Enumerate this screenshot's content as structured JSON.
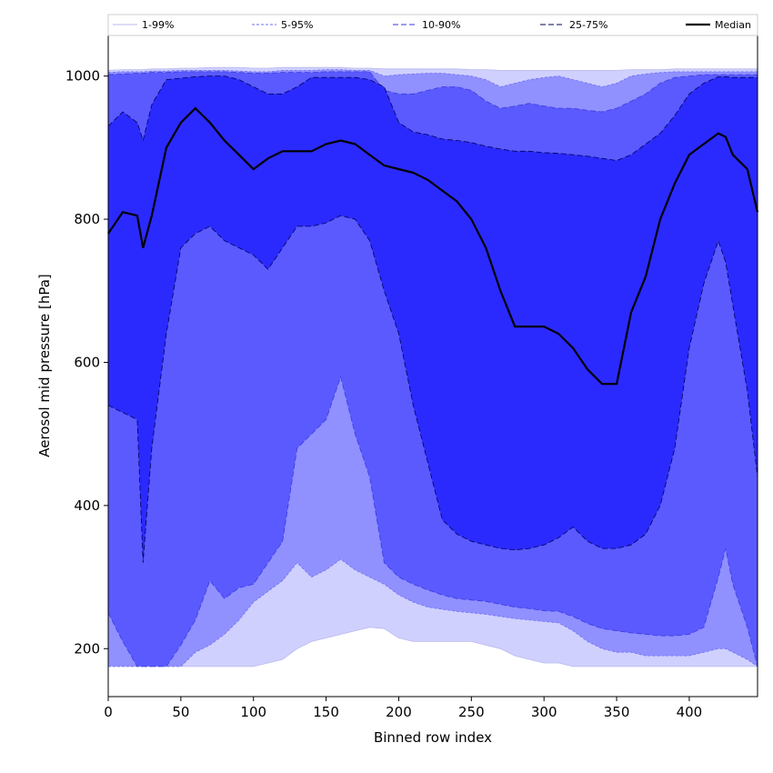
{
  "chart_data": {
    "type": "area",
    "title": "",
    "xlabel": "Binned row index",
    "ylabel": "Aerosol mid pressure [hPa]",
    "xlim": [
      0,
      447
    ],
    "ylim": [
      133,
      1058
    ],
    "xticks": [
      0,
      50,
      100,
      150,
      200,
      250,
      300,
      350,
      400
    ],
    "yticks": [
      200,
      400,
      600,
      800,
      1000
    ],
    "grid": false,
    "legend_position": "top",
    "x": [
      0,
      10,
      20,
      24,
      30,
      40,
      50,
      60,
      70,
      80,
      90,
      100,
      110,
      120,
      130,
      140,
      150,
      160,
      170,
      180,
      190,
      200,
      210,
      220,
      230,
      240,
      250,
      260,
      270,
      280,
      290,
      300,
      310,
      320,
      330,
      340,
      350,
      360,
      370,
      380,
      390,
      400,
      410,
      420,
      425,
      430,
      440,
      447
    ],
    "bands": [
      {
        "name": "1-99%",
        "color": "#d0d0ff",
        "lower": [
          175,
          175,
          175,
          175,
          175,
          175,
          175,
          175,
          175,
          175,
          175,
          175,
          180,
          185,
          200,
          210,
          215,
          220,
          225,
          230,
          228,
          215,
          210,
          210,
          210,
          210,
          210,
          205,
          200,
          190,
          185,
          180,
          180,
          175,
          175,
          175,
          175,
          175,
          175,
          175,
          175,
          175,
          175,
          175,
          175,
          175,
          175,
          175
        ],
        "upper": [
          1008,
          1009,
          1009,
          1009,
          1010,
          1010,
          1011,
          1011,
          1012,
          1012,
          1012,
          1011,
          1011,
          1012,
          1012,
          1012,
          1012,
          1012,
          1011,
          1011,
          1010,
          1010,
          1010,
          1010,
          1010,
          1010,
          1009,
          1009,
          1008,
          1008,
          1008,
          1008,
          1008,
          1008,
          1008,
          1008,
          1008,
          1009,
          1009,
          1009,
          1010,
          1010,
          1010,
          1010,
          1010,
          1010,
          1010,
          1010
        ]
      },
      {
        "name": "5-95%",
        "color": "#9090ff",
        "lower": [
          175,
          175,
          175,
          175,
          175,
          175,
          175,
          195,
          205,
          220,
          240,
          265,
          280,
          295,
          320,
          300,
          310,
          325,
          310,
          300,
          290,
          275,
          265,
          258,
          255,
          252,
          250,
          248,
          245,
          242,
          240,
          238,
          236,
          225,
          210,
          200,
          195,
          195,
          190,
          190,
          190,
          190,
          195,
          200,
          200,
          195,
          185,
          175
        ],
        "upper": [
          1005,
          1006,
          1006,
          1006,
          1007,
          1007,
          1008,
          1008,
          1008,
          1008,
          1007,
          1006,
          1006,
          1008,
          1008,
          1008,
          1009,
          1009,
          1008,
          1008,
          1000,
          1002,
          1003,
          1004,
          1004,
          1002,
          1000,
          995,
          985,
          990,
          995,
          998,
          1000,
          995,
          990,
          985,
          990,
          1000,
          1003,
          1005,
          1006,
          1006,
          1006,
          1006,
          1006,
          1006,
          1006,
          1006
        ]
      },
      {
        "name": "10-90%",
        "color": "#5a5aff",
        "lower": [
          250,
          210,
          175,
          175,
          175,
          175,
          205,
          240,
          295,
          270,
          285,
          290,
          320,
          350,
          480,
          500,
          520,
          580,
          500,
          440,
          320,
          300,
          290,
          282,
          275,
          270,
          268,
          266,
          262,
          258,
          256,
          253,
          252,
          245,
          235,
          228,
          225,
          222,
          220,
          218,
          218,
          220,
          230,
          300,
          340,
          290,
          230,
          175
        ],
        "upper": [
          1002,
          1003,
          1004,
          1004,
          1005,
          1005,
          1006,
          1006,
          1006,
          1006,
          1005,
          1004,
          1004,
          1005,
          1005,
          1005,
          1006,
          1006,
          1006,
          1006,
          980,
          975,
          975,
          980,
          985,
          985,
          980,
          965,
          955,
          958,
          962,
          958,
          955,
          955,
          952,
          950,
          955,
          965,
          975,
          990,
          998,
          1000,
          1002,
          1002,
          1002,
          1002,
          1002,
          1002
        ]
      },
      {
        "name": "25-75%",
        "color": "#2a2aff",
        "lower": [
          540,
          530,
          520,
          320,
          480,
          640,
          760,
          780,
          790,
          770,
          760,
          750,
          730,
          760,
          790,
          790,
          795,
          805,
          800,
          770,
          700,
          640,
          540,
          460,
          380,
          360,
          350,
          345,
          340,
          338,
          340,
          345,
          355,
          370,
          350,
          340,
          340,
          345,
          360,
          400,
          480,
          620,
          710,
          770,
          740,
          680,
          560,
          440
        ],
        "upper": [
          930,
          950,
          935,
          910,
          960,
          995,
          997,
          999,
          1000,
          1000,
          995,
          985,
          975,
          975,
          985,
          998,
          998,
          998,
          998,
          995,
          985,
          935,
          922,
          918,
          912,
          910,
          907,
          902,
          898,
          895,
          895,
          893,
          892,
          890,
          888,
          885,
          882,
          890,
          905,
          920,
          945,
          975,
          990,
          999,
          999,
          998,
          998,
          998
        ]
      }
    ],
    "median": {
      "name": "Median",
      "color": "#000000",
      "y": [
        780,
        810,
        805,
        760,
        805,
        900,
        935,
        955,
        935,
        910,
        890,
        870,
        885,
        895,
        895,
        895,
        905,
        910,
        905,
        890,
        875,
        870,
        865,
        855,
        840,
        825,
        800,
        760,
        700,
        650,
        650,
        650,
        640,
        620,
        590,
        570,
        570,
        670,
        720,
        800,
        850,
        890,
        905,
        920,
        915,
        890,
        870,
        810
      ]
    }
  }
}
